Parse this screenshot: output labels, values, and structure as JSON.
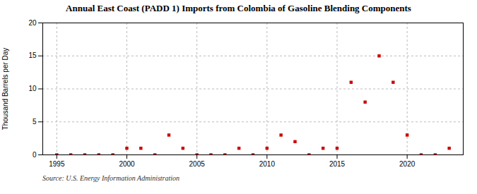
{
  "chart_data": {
    "type": "scatter",
    "title": "Annual East Coast (PADD 1) Imports from Colombia of Gasoline Blending Components",
    "ylabel": "Thousand Barrels per Day",
    "annotation": "Source: U.S. Energy Information Administration",
    "x": [
      1995,
      1996,
      1997,
      1998,
      1999,
      2000,
      2001,
      2002,
      2003,
      2004,
      2005,
      2006,
      2007,
      2008,
      2009,
      2010,
      2011,
      2012,
      2013,
      2014,
      2015,
      2016,
      2017,
      2018,
      2019,
      2020,
      2021,
      2022,
      2023
    ],
    "values": [
      0,
      0,
      0,
      0,
      0,
      1,
      1,
      0,
      3,
      1,
      0,
      0,
      0,
      1,
      0,
      1,
      3,
      2,
      0,
      1,
      1,
      11,
      8,
      15,
      11,
      3,
      0,
      0,
      1
    ],
    "color": "#cc0000",
    "marker": "square",
    "xlim": [
      1994,
      2024
    ],
    "xticks": [
      1995,
      2000,
      2005,
      2010,
      2015,
      2020
    ],
    "ylim": [
      0,
      20
    ],
    "yticks": [
      0,
      5,
      10,
      15,
      20
    ],
    "grid": true
  }
}
